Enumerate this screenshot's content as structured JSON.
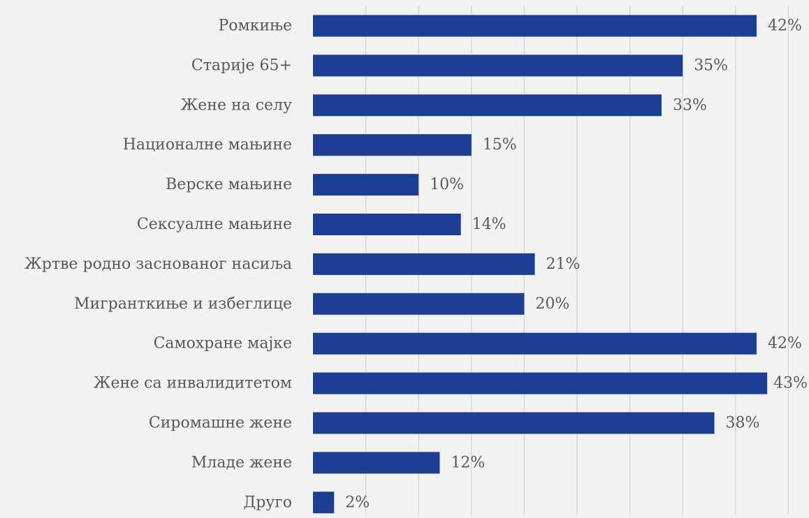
{
  "chart_data": {
    "type": "bar",
    "orientation": "horizontal",
    "categories": [
      "Ромкиње",
      "Старије 65+",
      "Жене на селу",
      "Националне мањине",
      "Верске мањине",
      "Сексуалне мањине",
      "Жртве родно заснованог насиља",
      "Мигранткиње и избеглице",
      "Самохране мајке",
      "Жене са инвалидитетом",
      "Сиромашне жене",
      "Младе жене",
      "Друго"
    ],
    "values": [
      42,
      35,
      33,
      15,
      10,
      14,
      21,
      20,
      42,
      43,
      38,
      12,
      2
    ],
    "value_labels": [
      "42%",
      "35%",
      "33%",
      "15%",
      "10%",
      "14%",
      "21%",
      "20%",
      "42%",
      "43%",
      "38%",
      "12%",
      "2%"
    ],
    "title": "",
    "xlabel": "",
    "ylabel": "",
    "xlim": [
      0,
      45
    ],
    "grid": true,
    "legend": "none",
    "colors": {
      "bar": "#1c3f94",
      "grid": "#d4d4d4",
      "background": "#f2f2f0",
      "text": "#595959"
    }
  }
}
